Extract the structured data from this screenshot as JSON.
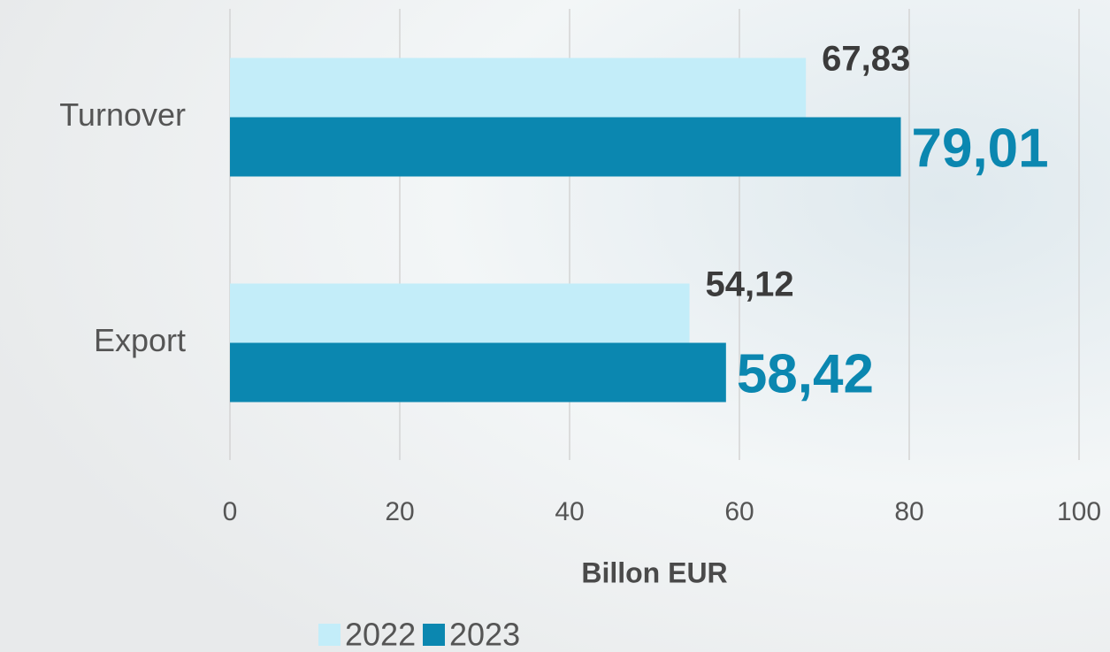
{
  "chart_data": {
    "type": "hbar",
    "categories": [
      "Turnover",
      "Export"
    ],
    "series": [
      {
        "name": "2022",
        "color": "#c3edf9",
        "label_color": "#3b3b3b",
        "values": [
          67.83,
          54.12
        ],
        "value_labels": [
          "67,83",
          "54,12"
        ]
      },
      {
        "name": "2023",
        "color": "#0b87b0",
        "label_color": "#0b87b0",
        "values": [
          79.01,
          58.42
        ],
        "value_labels": [
          "79,01",
          "58,42"
        ]
      }
    ],
    "xlabel": "Billon EUR",
    "xlim": [
      0,
      100
    ],
    "xticks": [
      0,
      20,
      40,
      60,
      80,
      100
    ],
    "grid": true,
    "legend": "bottom"
  }
}
